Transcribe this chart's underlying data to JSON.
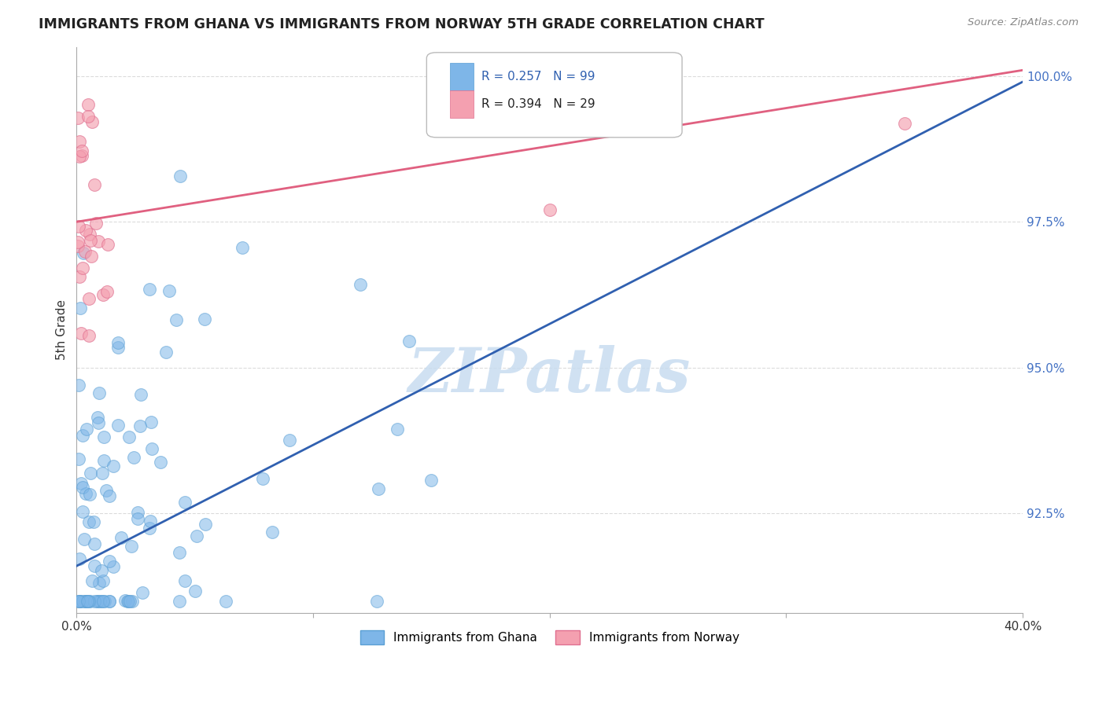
{
  "title": "IMMIGRANTS FROM GHANA VS IMMIGRANTS FROM NORWAY 5TH GRADE CORRELATION CHART",
  "source_text": "Source: ZipAtlas.com",
  "ylabel": "5th Grade",
  "xlim": [
    0.0,
    0.4
  ],
  "ylim": [
    0.908,
    1.005
  ],
  "xtick_labels": [
    "0.0%",
    "",
    "",
    "",
    "40.0%"
  ],
  "xtick_values": [
    0.0,
    0.1,
    0.2,
    0.3,
    0.4
  ],
  "ytick_labels": [
    "92.5%",
    "95.0%",
    "97.5%",
    "100.0%"
  ],
  "ytick_values": [
    0.925,
    0.95,
    0.975,
    1.0
  ],
  "ytick_color": "#4472C4",
  "ghana_color": "#7EB6E8",
  "ghana_edge_color": "#5A9FD4",
  "norway_color": "#F4A0B0",
  "norway_edge_color": "#E07090",
  "ghana_R": 0.257,
  "ghana_N": 99,
  "norway_R": 0.394,
  "norway_N": 29,
  "legend_ghana": "Immigrants from Ghana",
  "legend_norway": "Immigrants from Norway",
  "watermark": "ZIPatlas",
  "blue_line_x0": 0.0,
  "blue_line_y0": 0.916,
  "blue_line_x1": 0.4,
  "blue_line_y1": 0.999,
  "pink_line_x0": 0.0,
  "pink_line_y0": 0.975,
  "pink_line_x1": 0.4,
  "pink_line_y1": 1.001,
  "blue_line_color": "#3060B0",
  "pink_line_color": "#E06080"
}
